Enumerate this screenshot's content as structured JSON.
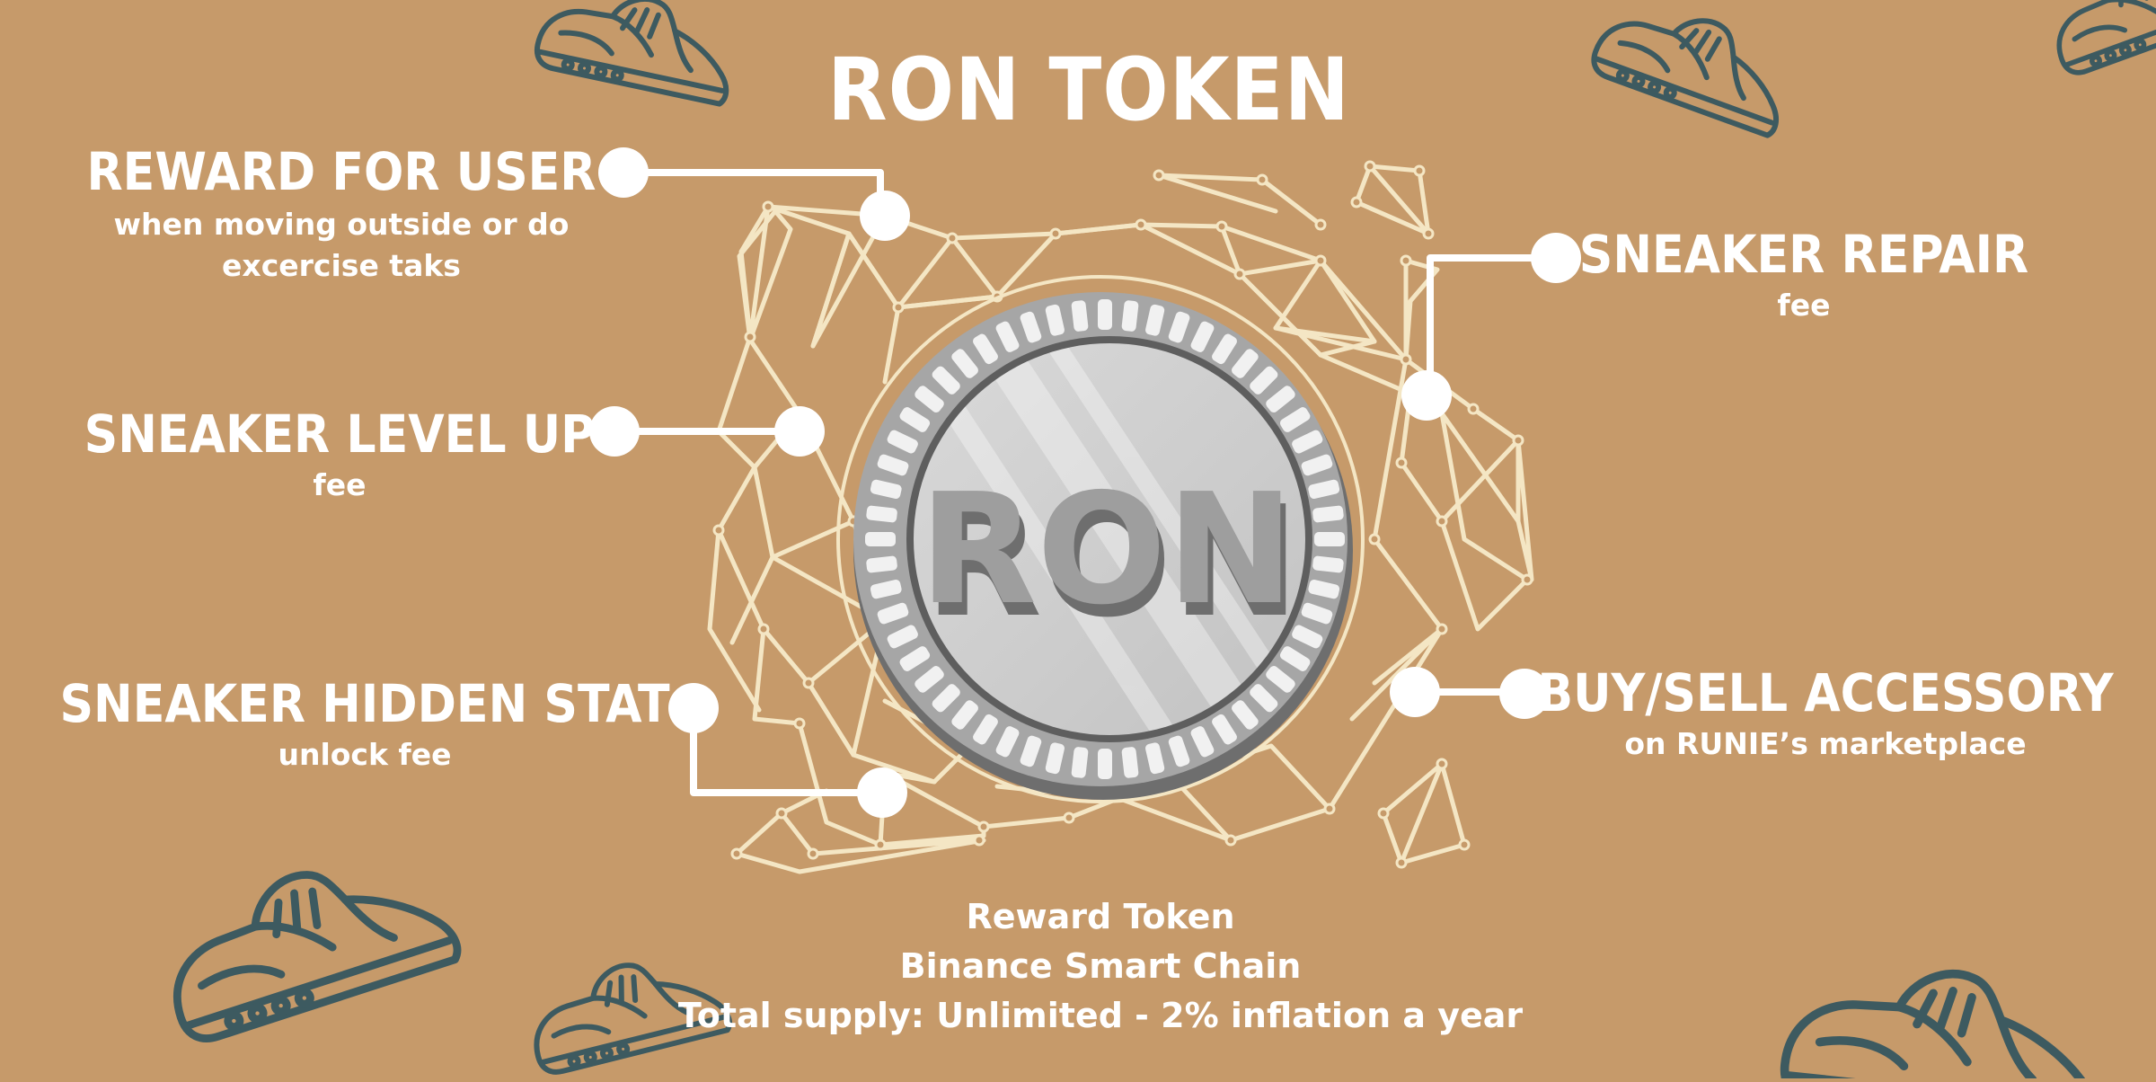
{
  "title": "RON TOKEN",
  "coin": {
    "label": "RON",
    "rim_color": "#A6A6A6",
    "face_color": "#CFCFCF",
    "shadow_color": "#6E6E6E"
  },
  "callouts": {
    "reward_for_user": {
      "title": "REWARD FOR USER",
      "subtitle_line1": "when moving outside or do",
      "subtitle_line2": "excercise taks"
    },
    "sneaker_level_up": {
      "title": "SNEAKER LEVEL UP",
      "subtitle": "fee"
    },
    "sneaker_hidden_stat": {
      "title": "SNEAKER HIDDEN STAT",
      "subtitle": "unlock fee"
    },
    "sneaker_repair": {
      "title": "SNEAKER REPAIR",
      "subtitle": "fee"
    },
    "buy_sell_accessory": {
      "title": "BUY/SELL ACCESSORY",
      "subtitle": "on RUNIE’s marketplace"
    }
  },
  "footer": {
    "line1": "Reward Token",
    "line2": "Binance Smart Chain",
    "line3": "Total supply: Unlimited - 2% inflation a year"
  },
  "colors": {
    "background": "#C69A6A",
    "network_line": "#F4E6C4",
    "connector": "#FFFFFF",
    "sneaker_outline": "#3D5A60"
  },
  "decorations": {
    "sneaker_icon": "sneaker-outline-icon",
    "network_icon": "polygon-network-icon"
  }
}
